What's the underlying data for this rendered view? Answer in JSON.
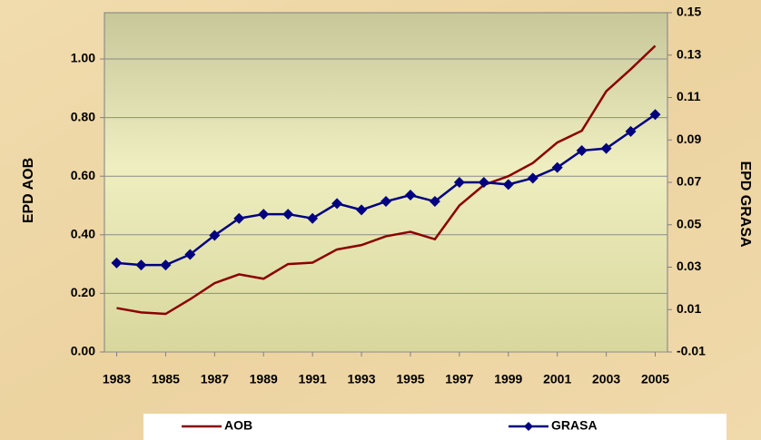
{
  "chart_data": {
    "type": "line",
    "y_label": "EPD AOB",
    "y2_label": "EPD GRASA",
    "x": [
      1983,
      1984,
      1985,
      1986,
      1987,
      1988,
      1989,
      1990,
      1991,
      1992,
      1993,
      1994,
      1995,
      1996,
      1997,
      1998,
      1999,
      2000,
      2001,
      2002,
      2003,
      2004,
      2005
    ],
    "xlim": [
      1982.5,
      2005.5
    ],
    "xticks": [
      1983,
      1985,
      1987,
      1989,
      1991,
      1993,
      1995,
      1997,
      1999,
      2001,
      2003,
      2005
    ],
    "ylim": [
      0,
      1.158
    ],
    "yticks": [
      {
        "value": 0,
        "label": "0.00"
      },
      {
        "value": 0.2,
        "label": "0.20"
      },
      {
        "value": 0.4,
        "label": "0.40"
      },
      {
        "value": 0.6,
        "label": "0.60"
      },
      {
        "value": 0.8,
        "label": "0.80"
      },
      {
        "value": 1,
        "label": "1.00"
      }
    ],
    "y2lim": [
      -0.01,
      0.15
    ],
    "y2ticks": [
      -0.01,
      0.01,
      0.03,
      0.05,
      0.07,
      0.09,
      0.11,
      0.13,
      0.15
    ],
    "grid": true,
    "legend": "bottom",
    "series": [
      {
        "name": "AOB",
        "color": "#8b0000",
        "marker": "none",
        "values": [
          0.15,
          0.135,
          0.13,
          0.18,
          0.235,
          0.265,
          0.25,
          0.3,
          0.305,
          0.35,
          0.365,
          0.395,
          0.41,
          0.385,
          0.5,
          0.57,
          0.6,
          0.645,
          0.715,
          0.755,
          0.89,
          0.965,
          1.045
        ]
      },
      {
        "name": "GRASA",
        "color": "#000080",
        "marker": "diamond",
        "axis": "y2",
        "values": [
          0.032,
          0.031,
          0.031,
          0.036,
          0.045,
          0.053,
          0.055,
          0.055,
          0.053,
          0.06,
          0.057,
          0.061,
          0.064,
          0.061,
          0.07,
          0.07,
          0.069,
          0.072,
          0.077,
          0.085,
          0.086,
          0.094,
          0.102
        ]
      }
    ]
  }
}
